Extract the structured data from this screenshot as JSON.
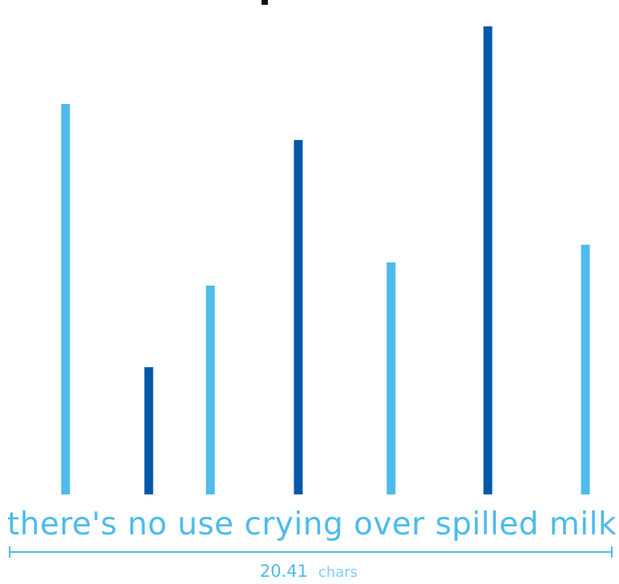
{
  "chart_data": {
    "type": "bar",
    "phrase": "there's no use crying over spilled milk",
    "measure_value": "20.41",
    "measure_unit": "chars",
    "values": [
      0.86,
      0.28,
      0.46,
      0.78,
      0.51,
      1.03,
      0.55
    ],
    "bar_colors": [
      "#4dbbec",
      "#0058a8",
      "#4dbbec",
      "#0058a8",
      "#4dbbec",
      "#0058a8",
      "#4dbbec"
    ],
    "ylim": [
      0,
      1
    ],
    "grid": false,
    "legend": "none"
  },
  "colors": {
    "light_blue": "#4dbbec",
    "dark_blue": "#0058a8",
    "text_dark": "#111111"
  }
}
